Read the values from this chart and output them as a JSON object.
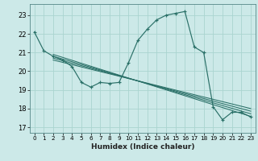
{
  "title": "",
  "xlabel": "Humidex (Indice chaleur)",
  "bg_color": "#cce9e8",
  "grid_color": "#aad4d0",
  "line_color": "#2a7068",
  "xlim": [
    -0.5,
    23.5
  ],
  "ylim": [
    16.7,
    23.6
  ],
  "yticks": [
    17,
    18,
    19,
    20,
    21,
    22,
    23
  ],
  "xticks": [
    0,
    1,
    2,
    3,
    4,
    5,
    6,
    7,
    8,
    9,
    10,
    11,
    12,
    13,
    14,
    15,
    16,
    17,
    18,
    19,
    20,
    21,
    22,
    23
  ],
  "main_x": [
    0,
    1,
    2,
    3,
    4,
    5,
    6,
    7,
    8,
    9,
    10,
    11,
    12,
    13,
    14,
    15,
    16,
    17,
    18,
    19,
    20,
    21,
    22,
    23
  ],
  "main_y": [
    22.1,
    21.1,
    20.8,
    20.6,
    20.25,
    19.4,
    19.15,
    19.4,
    19.35,
    19.4,
    20.45,
    21.65,
    22.25,
    22.75,
    23.0,
    23.1,
    23.2,
    21.3,
    21.0,
    18.1,
    17.4,
    17.8,
    17.8,
    17.55
  ],
  "trend_lines": [
    {
      "x": [
        2,
        23
      ],
      "y": [
        20.9,
        17.58
      ]
    },
    {
      "x": [
        2,
        23
      ],
      "y": [
        20.8,
        17.72
      ]
    },
    {
      "x": [
        2,
        23
      ],
      "y": [
        20.7,
        17.86
      ]
    },
    {
      "x": [
        2,
        23
      ],
      "y": [
        20.6,
        18.0
      ]
    }
  ]
}
